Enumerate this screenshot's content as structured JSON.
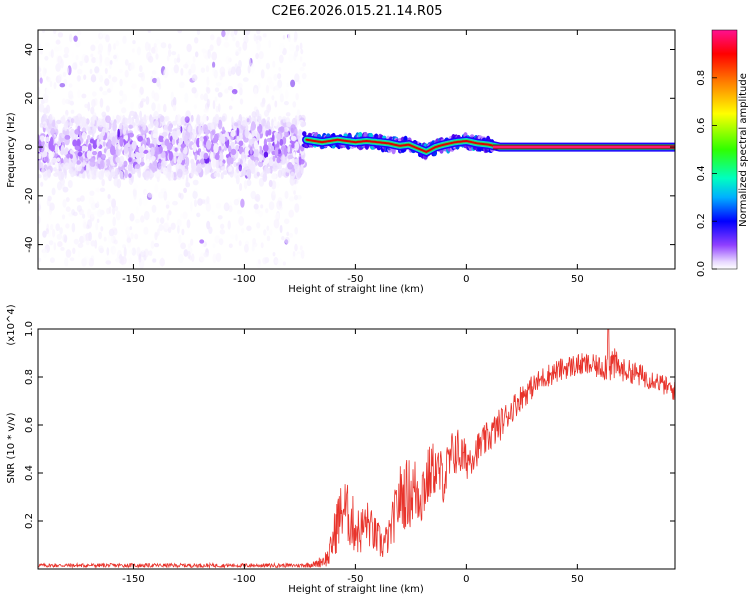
{
  "title": "C2E6.2026.015.21.14.R05",
  "colors": {
    "snr_line": "#e8332b",
    "trace": "#e00000",
    "trace_outline": "#35d060"
  },
  "chart_data": [
    {
      "type": "heatmap",
      "title": "C2E6.2026.015.21.14.R05",
      "xlabel": "Height of straight line (km)",
      "ylabel": "Frequency (Hz)",
      "xlim": [
        -193,
        94
      ],
      "ylim": [
        -50,
        48
      ],
      "xticks": [
        -150,
        -100,
        -50,
        0,
        50
      ],
      "xtick_labels": [
        "-150",
        "-100",
        "-50",
        "0",
        "50"
      ],
      "yticks": [
        -40,
        -20,
        0,
        20,
        40
      ],
      "ytick_labels": [
        "-40",
        "-20",
        "0",
        "20",
        "40"
      ],
      "colorbar": {
        "label": "Normalized spectral amplitude",
        "range": [
          0,
          1
        ],
        "ticks": [
          0.0,
          0.2,
          0.4,
          0.6,
          0.8
        ],
        "tick_labels": [
          "0.0",
          "0.2",
          "0.4",
          "0.6",
          "0.8"
        ],
        "colormap": [
          "#ffffff",
          "#ece0ff",
          "#b070ff",
          "#5000e8",
          "#0000ff",
          "#00e0e0",
          "#00ff30",
          "#ffff00",
          "#ff8000",
          "#ff0000",
          "#ff00c0"
        ]
      },
      "regions": [
        {
          "x_range": [
            -193,
            -73
          ],
          "description_level": "scattered noise, strong near 0 Hz",
          "max_amplitude": 0.25
        },
        {
          "x_range": [
            -73,
            12
          ],
          "description_level": "wavy trace near 0 Hz",
          "max_amplitude": 0.9
        },
        {
          "x_range": [
            12,
            94
          ],
          "description_level": "steady trace at 0 Hz",
          "max_amplitude": 1.0
        }
      ],
      "trace": {
        "x": [
          -72,
          -65,
          -58,
          -50,
          -45,
          -40,
          -35,
          -30,
          -26,
          -22,
          -18,
          -14,
          -10,
          -5,
          0,
          5,
          10,
          15,
          94
        ],
        "freq": [
          3,
          2,
          3,
          2,
          2.5,
          2,
          1.5,
          0.5,
          1,
          -0.5,
          -2,
          0,
          1,
          2,
          2.5,
          1.5,
          1,
          0,
          0
        ]
      }
    },
    {
      "type": "line",
      "xlabel": "Height of straight line (km)",
      "ylabel": "SNR (10 * v/v)",
      "y_scale_label": "(x10^4)",
      "xlim": [
        -193,
        94
      ],
      "ylim": [
        0,
        1.0
      ],
      "xticks": [
        -150,
        -100,
        -50,
        0,
        50
      ],
      "xtick_labels": [
        "-150",
        "-100",
        "-50",
        "0",
        "50"
      ],
      "yticks": [
        0.2,
        0.4,
        0.6,
        0.8,
        1.0
      ],
      "ytick_labels": [
        "0.2",
        "0.4",
        "0.6",
        "0.8",
        "1.0"
      ],
      "series": [
        {
          "name": "SNR",
          "x": [
            -193,
            -150,
            -100,
            -75,
            -68,
            -62,
            -58,
            -55,
            -52,
            -48,
            -45,
            -42,
            -38,
            -35,
            -30,
            -25,
            -20,
            -15,
            -10,
            -5,
            0,
            5,
            10,
            15,
            20,
            25,
            30,
            35,
            40,
            45,
            50,
            55,
            60,
            65,
            70,
            75,
            80,
            85,
            90,
            94
          ],
          "mean": [
            0.015,
            0.015,
            0.015,
            0.015,
            0.02,
            0.05,
            0.2,
            0.26,
            0.2,
            0.15,
            0.2,
            0.15,
            0.1,
            0.13,
            0.3,
            0.32,
            0.33,
            0.42,
            0.38,
            0.5,
            0.45,
            0.5,
            0.55,
            0.6,
            0.66,
            0.72,
            0.76,
            0.8,
            0.82,
            0.84,
            0.85,
            0.85,
            0.84,
            0.86,
            0.83,
            0.82,
            0.8,
            0.79,
            0.76,
            0.74
          ],
          "noise": [
            0.006,
            0.006,
            0.006,
            0.006,
            0.01,
            0.03,
            0.09,
            0.09,
            0.09,
            0.07,
            0.07,
            0.06,
            0.05,
            0.05,
            0.1,
            0.11,
            0.11,
            0.08,
            0.08,
            0.08,
            0.06,
            0.05,
            0.05,
            0.05,
            0.04,
            0.04,
            0.035,
            0.035,
            0.035,
            0.035,
            0.035,
            0.035,
            0.035,
            0.06,
            0.035,
            0.035,
            0.035,
            0.03,
            0.03,
            0.03
          ],
          "peak": {
            "x": 64,
            "y": 1.0
          }
        }
      ]
    }
  ]
}
